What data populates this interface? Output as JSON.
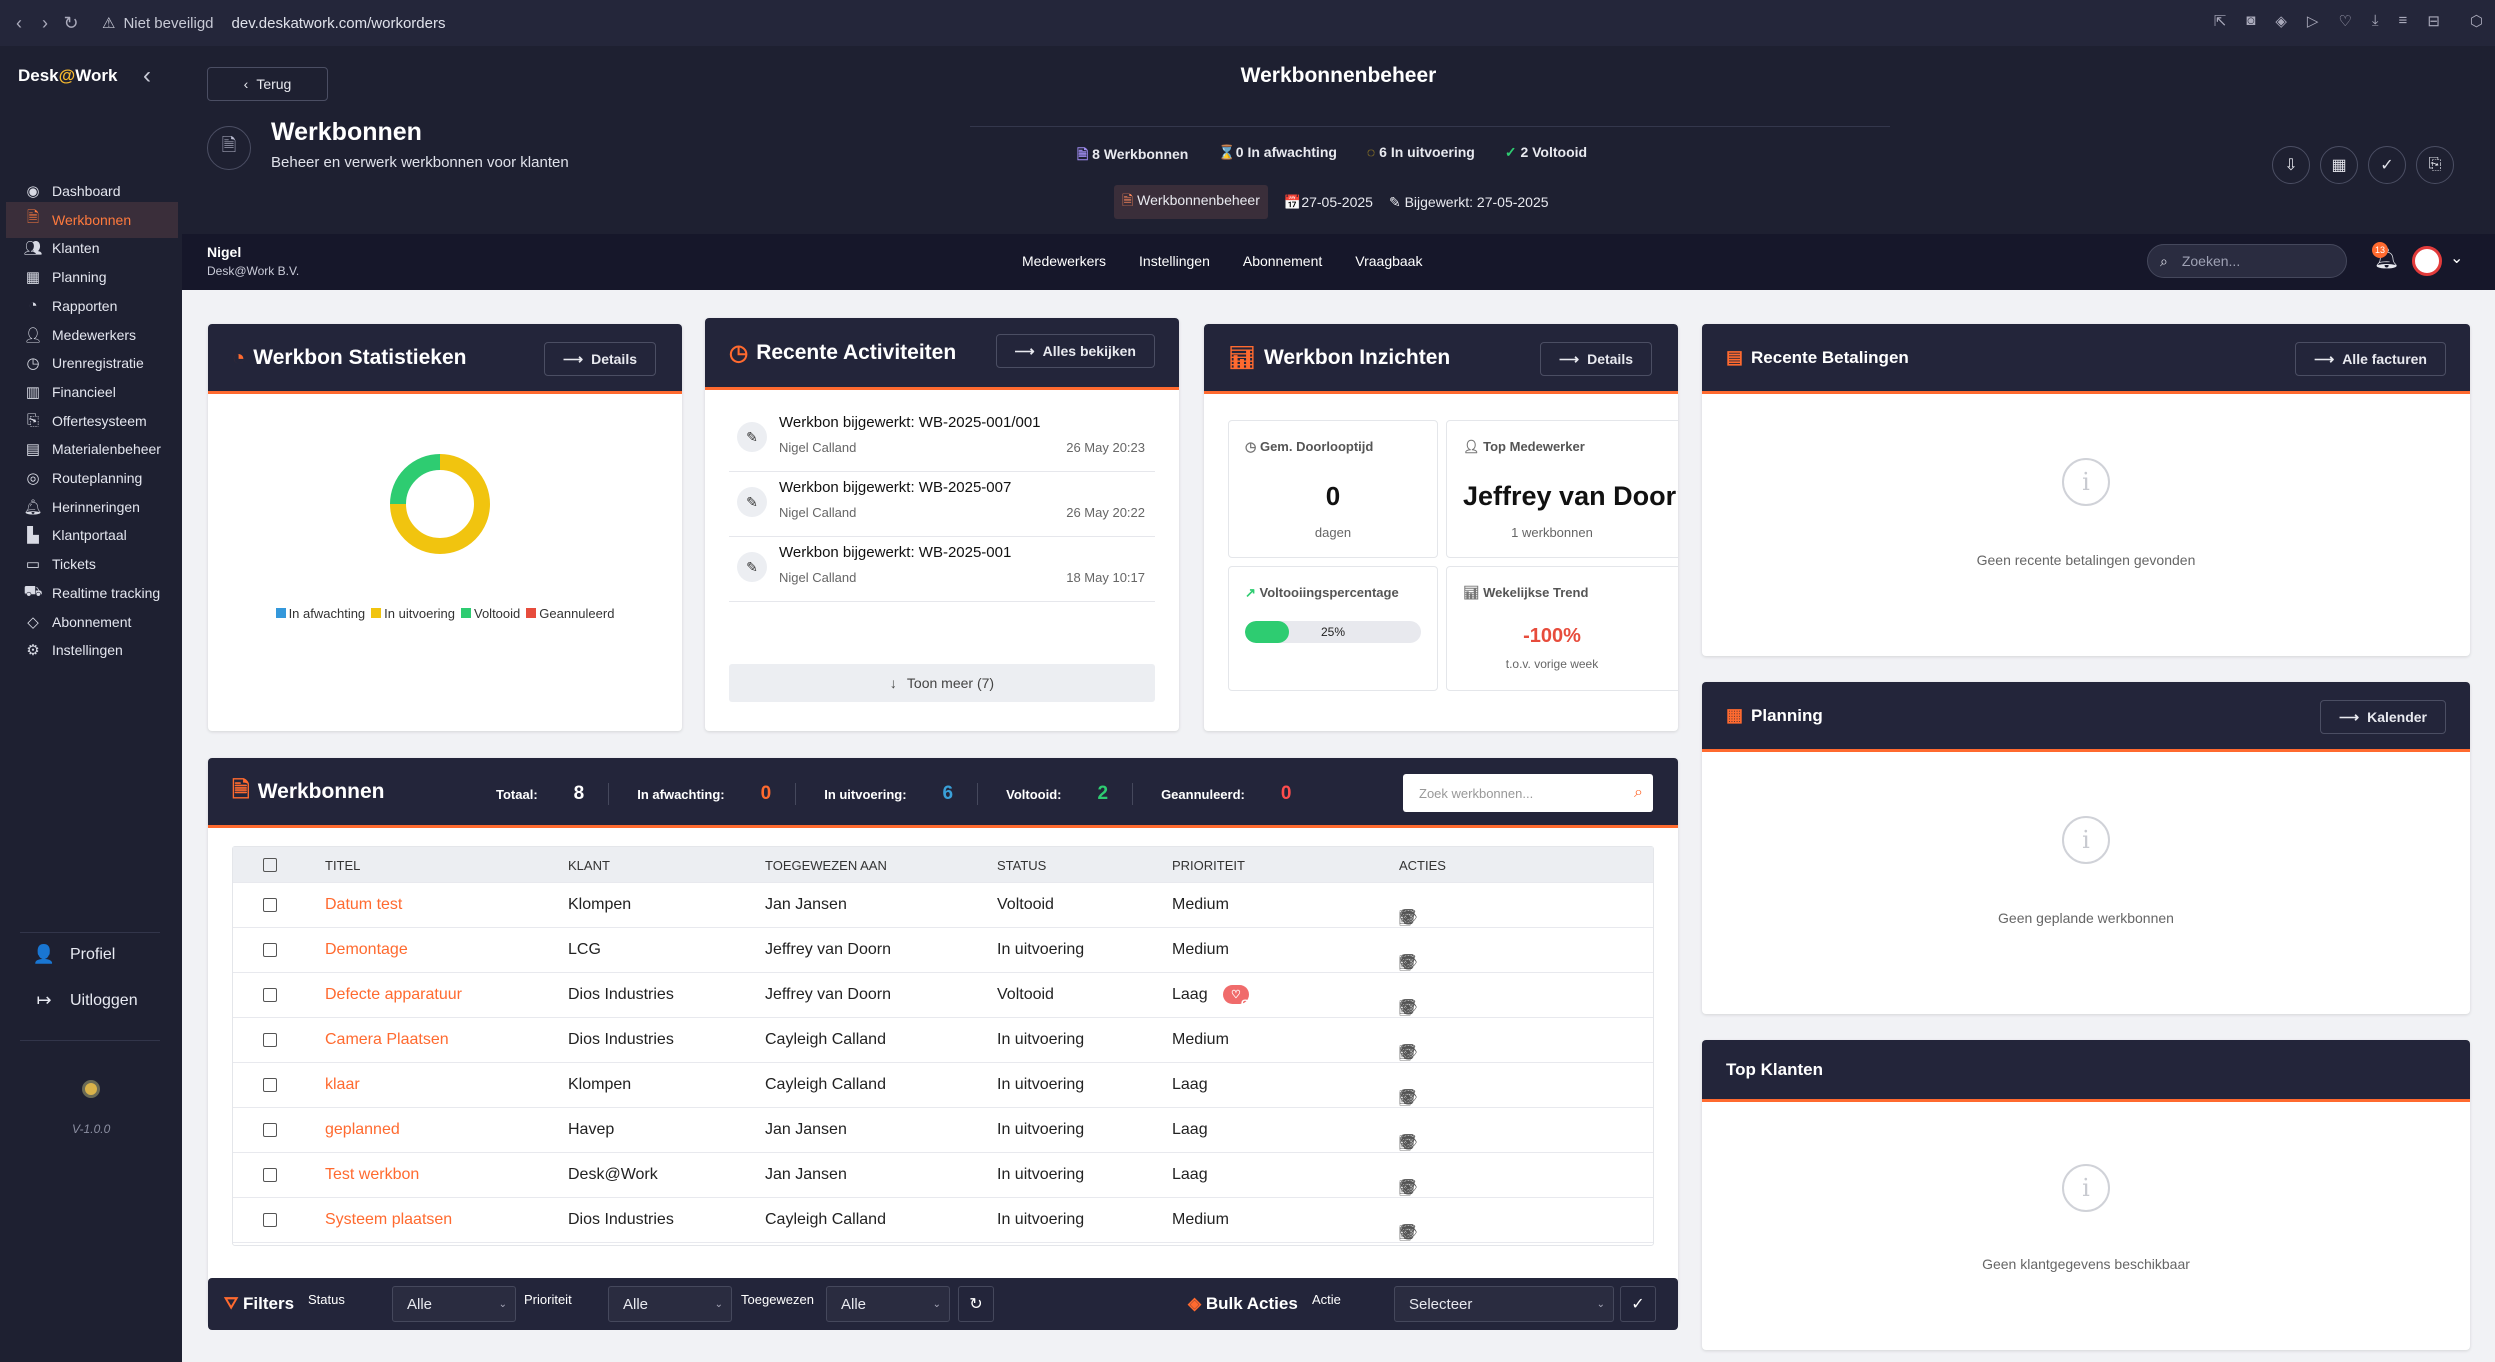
{
  "browser": {
    "security_label": "Niet beveiligd",
    "url": "dev.deskatwork.com/workorders"
  },
  "sidebar": {
    "logo_prefix": "Desk",
    "logo_at": "@",
    "logo_suffix": "Work",
    "items": [
      {
        "label": "Dashboard",
        "icon": "dashboard-icon"
      },
      {
        "label": "Werkbonnen",
        "icon": "document-icon",
        "active": true
      },
      {
        "label": "Klanten",
        "icon": "users-icon"
      },
      {
        "label": "Planning",
        "icon": "calendar-icon"
      },
      {
        "label": "Rapporten",
        "icon": "pie-chart-icon"
      },
      {
        "label": "Medewerkers",
        "icon": "user-icon"
      },
      {
        "label": "Urenregistratie",
        "icon": "clock-icon"
      },
      {
        "label": "Financieel",
        "icon": "finance-icon"
      },
      {
        "label": "Offertesysteem",
        "icon": "quote-icon"
      },
      {
        "label": "Materialenbeheer",
        "icon": "materials-icon"
      },
      {
        "label": "Routeplanning",
        "icon": "route-icon"
      },
      {
        "label": "Herinneringen",
        "icon": "bell-icon"
      },
      {
        "label": "Klantportaal",
        "icon": "portal-icon"
      },
      {
        "label": "Tickets",
        "icon": "ticket-icon"
      },
      {
        "label": "Realtime tracking",
        "icon": "tracking-icon"
      },
      {
        "label": "Abonnement",
        "icon": "tag-icon"
      },
      {
        "label": "Instellingen",
        "icon": "settings-icon"
      }
    ],
    "profile_label": "Profiel",
    "logout_label": "Uitloggen",
    "version": "V-1.0.0"
  },
  "header": {
    "back_label": "Terug",
    "module_title": "Werkbonnenbeheer",
    "page_title": "Werkbonnen",
    "page_subtitle": "Beheer en verwerk werkbonnen voor klanten",
    "stats": {
      "total": "8 Werkbonnen",
      "pending": "0 In afwachting",
      "in_progress": "6 In uitvoering",
      "done": "2 Voltooid"
    },
    "badge": "Werkbonnenbeheer",
    "date": "27-05-2025",
    "updated": "Bijgewerkt: 27-05-2025"
  },
  "topnav": {
    "user_name": "Nigel",
    "company": "Desk@Work B.V.",
    "links": [
      "Medewerkers",
      "Instellingen",
      "Abonnement",
      "Vraagbaak"
    ],
    "search_placeholder": "Zoeken...",
    "notification_count": "13"
  },
  "stats_card": {
    "title": "Werkbon Statistieken",
    "button": "Details",
    "legend": [
      {
        "label": "In afwachting",
        "color": "#3498db"
      },
      {
        "label": "In uitvoering",
        "color": "#f1c40f"
      },
      {
        "label": "Voltooid",
        "color": "#2ecc71"
      },
      {
        "label": "Geannuleerd",
        "color": "#e74c3c"
      }
    ],
    "chart_data": {
      "type": "pie",
      "categories": [
        "In afwachting",
        "In uitvoering",
        "Voltooid",
        "Geannuleerd"
      ],
      "values": [
        0,
        6,
        2,
        0
      ]
    }
  },
  "activities_card": {
    "title": "Recente Activiteiten",
    "button": "Alles bekijken",
    "items": [
      {
        "title": "Werkbon bijgewerkt: WB-2025-001/001",
        "user": "Nigel Calland",
        "time": "26 May 20:23"
      },
      {
        "title": "Werkbon bijgewerkt: WB-2025-007",
        "user": "Nigel Calland",
        "time": "26 May 20:22"
      },
      {
        "title": "Werkbon bijgewerkt: WB-2025-001",
        "user": "Nigel Calland",
        "time": "18 May 10:17"
      }
    ],
    "more": "Toon meer (7)"
  },
  "insights_card": {
    "title": "Werkbon Inzichten",
    "button": "Details",
    "avg_label": "Gem. Doorlooptijd",
    "avg_value": "0",
    "avg_unit": "dagen",
    "top_label": "Top Medewerker",
    "top_value": "Jeffrey van Doorn",
    "top_sub": "1 werkbonnen",
    "completion_label": "Voltooiingspercentage",
    "completion_value": "25%",
    "completion_fraction": 0.25,
    "trend_label": "Wekelijkse Trend",
    "trend_value": "-100%",
    "trend_sub": "t.o.v. vorige week"
  },
  "payments_card": {
    "title": "Recente Betalingen",
    "button": "Alle facturen",
    "empty": "Geen recente betalingen gevonden"
  },
  "planning_card": {
    "title": "Planning",
    "button": "Kalender",
    "empty": "Geen geplande werkbonnen"
  },
  "top_clients_card": {
    "title": "Top Klanten",
    "empty": "Geen klantgegevens beschikbaar"
  },
  "workorders": {
    "title": "Werkbonnen",
    "summary": [
      {
        "label": "Totaal:",
        "value": "8",
        "color": "#ffffff"
      },
      {
        "label": "In afwachting:",
        "value": "0",
        "color": "#ff6a2f"
      },
      {
        "label": "In uitvoering:",
        "value": "6",
        "color": "#3aa0d8"
      },
      {
        "label": "Voltooid:",
        "value": "2",
        "color": "#2ecc71"
      },
      {
        "label": "Geannuleerd:",
        "value": "0",
        "color": "#ff4d4d"
      }
    ],
    "search_placeholder": "Zoek werkbonnen...",
    "columns": [
      "TITEL",
      "KLANT",
      "TOEGEWEZEN AAN",
      "STATUS",
      "PRIORITEIT",
      "ACTIES"
    ],
    "rows": [
      {
        "title": "Datum test",
        "client": "Klompen",
        "assigned": "Jan Jansen",
        "status": "Voltooid",
        "priority": "Medium",
        "tag": ""
      },
      {
        "title": "Demontage",
        "client": "LCG",
        "assigned": "Jeffrey van Doorn",
        "status": "In uitvoering",
        "priority": "Medium",
        "tag": ""
      },
      {
        "title": "Defecte apparatuur",
        "client": "Dios Industries",
        "assigned": "Jeffrey van Doorn",
        "status": "Voltooid",
        "priority": "Laag",
        "tag": "Garantie"
      },
      {
        "title": "Camera Plaatsen",
        "client": "Dios Industries",
        "assigned": "Cayleigh Calland",
        "status": "In uitvoering",
        "priority": "Medium",
        "tag": ""
      },
      {
        "title": "klaar",
        "client": "Klompen",
        "assigned": "Cayleigh Calland",
        "status": "In uitvoering",
        "priority": "Laag",
        "tag": ""
      },
      {
        "title": "geplanned",
        "client": "Havep",
        "assigned": "Jan Jansen",
        "status": "In uitvoering",
        "priority": "Laag",
        "tag": ""
      },
      {
        "title": "Test werkbon",
        "client": "Desk@Work",
        "assigned": "Jan Jansen",
        "status": "In uitvoering",
        "priority": "Laag",
        "tag": ""
      },
      {
        "title": "Systeem plaatsen",
        "client": "Dios Industries",
        "assigned": "Cayleigh Calland",
        "status": "In uitvoering",
        "priority": "Medium",
        "tag": ""
      }
    ]
  },
  "filters": {
    "title": "Filters",
    "status_label": "Status",
    "status_value": "Alle",
    "priority_label": "Prioriteit",
    "priority_value": "Alle",
    "assigned_label": "Toegewezen",
    "assigned_value": "Alle",
    "bulk_title": "Bulk Acties",
    "action_label": "Actie",
    "action_value": "Selecteer"
  }
}
